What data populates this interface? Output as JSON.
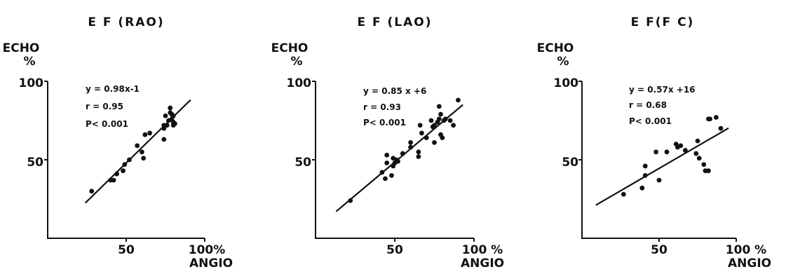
{
  "chart_data": [
    {
      "type": "scatter",
      "title": "E F (RAO)",
      "ylabel": [
        "ECHO",
        "%"
      ],
      "xlabel": "ANGIO",
      "xticks": [
        "50",
        "100%"
      ],
      "yticks": [
        "100",
        "50"
      ],
      "xlim": [
        0,
        100
      ],
      "ylim": [
        0,
        100
      ],
      "annotations": [
        "y = 0.98x-1",
        "r = 0.95",
        "P< 0.001"
      ],
      "fit": {
        "slope": 0.98,
        "intercept": -1,
        "x_range": [
          24,
          91
        ]
      },
      "points": [
        [
          28,
          30
        ],
        [
          40,
          37
        ],
        [
          42,
          37
        ],
        [
          44,
          41
        ],
        [
          48,
          43
        ],
        [
          49,
          47
        ],
        [
          52,
          50
        ],
        [
          57,
          59
        ],
        [
          60,
          55
        ],
        [
          61,
          51
        ],
        [
          62,
          66
        ],
        [
          65,
          67
        ],
        [
          74,
          63
        ],
        [
          74,
          70
        ],
        [
          74,
          72
        ],
        [
          75,
          78
        ],
        [
          76,
          72
        ],
        [
          77,
          75
        ],
        [
          78,
          83
        ],
        [
          78,
          80
        ],
        [
          79,
          79
        ],
        [
          79,
          76
        ],
        [
          80,
          74
        ],
        [
          80,
          72
        ],
        [
          81,
          73
        ],
        [
          80,
          78
        ]
      ]
    },
    {
      "type": "scatter",
      "title": "E F (LAO)",
      "ylabel": [
        "ECHO",
        "%"
      ],
      "xlabel": "ANGIO",
      "xticks": [
        "50",
        "100 %"
      ],
      "yticks": [
        "100",
        "50"
      ],
      "xlim": [
        0,
        100
      ],
      "ylim": [
        0,
        100
      ],
      "annotations": [
        "y = 0.85 x +6",
        "r = 0.93",
        "P< 0.001"
      ],
      "fit": {
        "slope": 0.85,
        "intercept": 6,
        "x_range": [
          13,
          93
        ]
      },
      "points": [
        [
          22,
          24
        ],
        [
          42,
          42
        ],
        [
          44,
          38
        ],
        [
          45,
          53
        ],
        [
          45,
          48
        ],
        [
          48,
          40
        ],
        [
          49,
          46
        ],
        [
          49,
          51
        ],
        [
          50,
          48
        ],
        [
          51,
          50
        ],
        [
          52,
          49
        ],
        [
          55,
          54
        ],
        [
          60,
          61
        ],
        [
          60,
          58
        ],
        [
          65,
          52
        ],
        [
          65,
          55
        ],
        [
          66,
          72
        ],
        [
          67,
          67
        ],
        [
          70,
          64
        ],
        [
          73,
          75
        ],
        [
          74,
          71
        ],
        [
          75,
          72
        ],
        [
          75,
          61
        ],
        [
          77,
          74
        ],
        [
          78,
          76
        ],
        [
          78,
          84
        ],
        [
          79,
          79
        ],
        [
          79,
          66
        ],
        [
          80,
          64
        ],
        [
          81,
          75
        ],
        [
          82,
          76
        ],
        [
          85,
          75
        ],
        [
          87,
          72
        ],
        [
          90,
          88
        ]
      ]
    },
    {
      "type": "scatter",
      "title": "E F(F C)",
      "ylabel": [
        "ECHO",
        "%"
      ],
      "xlabel": "ANGIO",
      "xticks": [
        "50",
        "100 %"
      ],
      "yticks": [
        "100",
        "50"
      ],
      "xlim": [
        0,
        100
      ],
      "ylim": [
        0,
        100
      ],
      "annotations": [
        "y = 0.57x +16",
        "r = 0.68",
        "P< 0.001"
      ],
      "fit": {
        "slope": 0.57,
        "intercept": 16,
        "x_range": [
          9,
          95
        ]
      },
      "points": [
        [
          27,
          28
        ],
        [
          39,
          32
        ],
        [
          41,
          40
        ],
        [
          41,
          46
        ],
        [
          48,
          55
        ],
        [
          50,
          37
        ],
        [
          55,
          55
        ],
        [
          61,
          60
        ],
        [
          62,
          58
        ],
        [
          64,
          59
        ],
        [
          67,
          56
        ],
        [
          74,
          54
        ],
        [
          75,
          62
        ],
        [
          76,
          51
        ],
        [
          79,
          47
        ],
        [
          80,
          43
        ],
        [
          82,
          43
        ],
        [
          82,
          76
        ],
        [
          83,
          76
        ],
        [
          87,
          77
        ],
        [
          90,
          70
        ]
      ]
    }
  ]
}
